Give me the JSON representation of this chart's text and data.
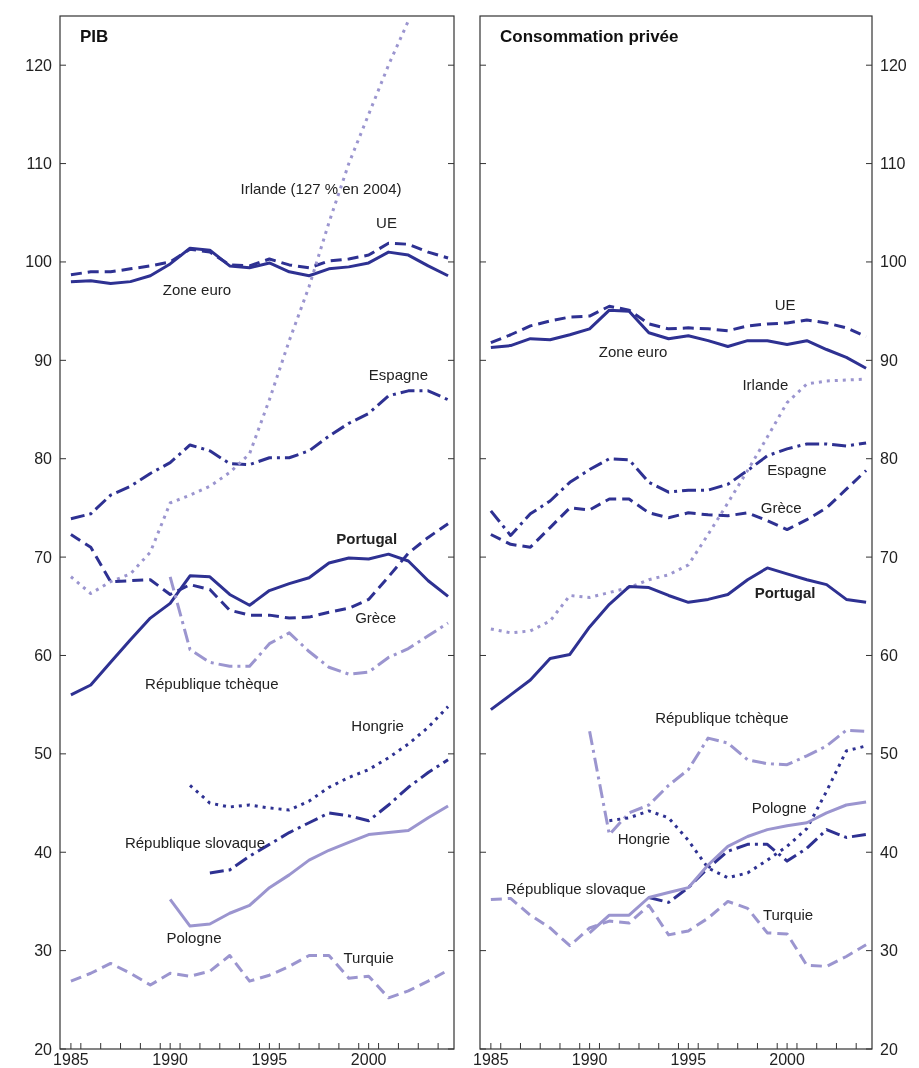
{
  "chart_data": [
    {
      "type": "line",
      "title": "PIB",
      "x": [
        1985,
        1986,
        1987,
        1988,
        1989,
        1990,
        1991,
        1992,
        1993,
        1994,
        1995,
        1996,
        1997,
        1998,
        1999,
        2000,
        2001,
        2002,
        2003,
        2004
      ],
      "xlim": [
        1984.45,
        2004.3
      ],
      "ylim": [
        20,
        125
      ],
      "xticks": [
        1985,
        {
          "value": 1985.5,
          "label": null
        },
        {
          "value": 1986.5,
          "label": null
        },
        {
          "value": 1987.5,
          "label": null
        },
        {
          "value": 1988.5,
          "label": null
        },
        {
          "value": 1989.5,
          "label": null
        },
        1990,
        {
          "value": 1990.5,
          "label": null
        },
        {
          "value": 1991.5,
          "label": null
        },
        {
          "value": 1992.5,
          "label": null
        },
        {
          "value": 1993.5,
          "label": null
        },
        {
          "value": 1994.5,
          "label": null
        },
        1995,
        {
          "value": 1995.5,
          "label": null
        },
        {
          "value": 1996.5,
          "label": null
        },
        {
          "value": 1997.5,
          "label": null
        },
        {
          "value": 1998.5,
          "label": null
        },
        {
          "value": 1999.5,
          "label": null
        },
        2000,
        {
          "value": 2000.5,
          "label": null
        },
        {
          "value": 2001.5,
          "label": null
        },
        {
          "value": 2002.5,
          "label": null
        },
        {
          "value": 2003.5,
          "label": null
        }
      ],
      "yticks": [
        20,
        30,
        40,
        50,
        60,
        70,
        80,
        90,
        100,
        110,
        120
      ],
      "series": [
        {
          "name": "Zone euro",
          "color": "#2e3192",
          "line_style": "solid",
          "values": [
            98,
            98.1,
            97.8,
            98,
            98.6,
            99.8,
            101.4,
            101.2,
            99.6,
            99.4,
            99.9,
            99,
            98.6,
            99.3,
            99.5,
            99.9,
            101,
            100.7,
            99.6,
            98.6
          ]
        },
        {
          "name": "UE",
          "color": "#2e3192",
          "line_style": "dashed",
          "values": [
            98.7,
            99,
            99,
            99.3,
            99.6,
            100,
            101.3,
            101,
            99.7,
            99.6,
            100.3,
            99.7,
            99.4,
            100.1,
            100.3,
            100.7,
            101.9,
            101.8,
            101,
            100.4
          ]
        },
        {
          "name": "Espagne",
          "color": "#2e3192",
          "line_style": "dashdot",
          "values": [
            73.9,
            74.4,
            76.3,
            77.2,
            78.5,
            79.6,
            81.4,
            80.8,
            79.5,
            79.4,
            80.1,
            80.1,
            80.8,
            82.3,
            83.6,
            84.6,
            86.4,
            86.9,
            86.9,
            86
          ]
        },
        {
          "name": "Irlande (127 % en 2004)",
          "color": "#9b95cf",
          "line_style": "dotted",
          "values": [
            68,
            66.3,
            67.5,
            68.3,
            70.5,
            75.5,
            76.3,
            77.2,
            78.6,
            80.5,
            86,
            92,
            97.5,
            104,
            110,
            115,
            120,
            124.5,
            null,
            null
          ]
        },
        {
          "name": "Portugal",
          "color": "#2e3192",
          "line_style": "solid",
          "values": [
            56,
            57,
            59.3,
            61.6,
            63.8,
            65.3,
            68.1,
            68,
            66.2,
            65.1,
            66.6,
            67.3,
            67.9,
            69.4,
            69.9,
            69.8,
            70.3,
            69.6,
            67.6,
            66
          ]
        },
        {
          "name": "Grèce",
          "color": "#2e3192",
          "line_style": "dashed",
          "values": [
            72.3,
            71,
            67.5,
            67.6,
            67.7,
            66.2,
            67.2,
            66.7,
            64.6,
            64.1,
            64.1,
            63.8,
            63.9,
            64.4,
            64.8,
            65.7,
            68,
            70.4,
            72,
            73.4
          ]
        },
        {
          "name": "République tchèque",
          "color": "#9b95cf",
          "line_style": "dashdot",
          "values": [
            null,
            null,
            null,
            null,
            null,
            68,
            60.6,
            59.3,
            58.9,
            58.9,
            61.2,
            62.3,
            60.4,
            58.8,
            58.1,
            58.3,
            59.8,
            60.7,
            62,
            63.3
          ]
        },
        {
          "name": "Hongrie",
          "color": "#2e3192",
          "line_style": "dotted",
          "values": [
            null,
            null,
            null,
            null,
            null,
            null,
            46.8,
            45,
            44.6,
            44.8,
            44.5,
            44.3,
            45.2,
            46.6,
            47.6,
            48.4,
            49.6,
            51,
            52.7,
            54.8
          ]
        },
        {
          "name": "République slovaque",
          "color": "#2e3192",
          "line_style": "dashdot",
          "values": [
            null,
            null,
            null,
            null,
            null,
            null,
            null,
            37.9,
            38.2,
            39.6,
            40.8,
            42,
            43,
            44,
            43.7,
            43.2,
            44.8,
            46.6,
            48.1,
            49.4
          ]
        },
        {
          "name": "Pologne",
          "color": "#9b95cf",
          "line_style": "solid",
          "values": [
            null,
            null,
            null,
            null,
            null,
            35.2,
            32.5,
            32.7,
            33.8,
            34.6,
            36.4,
            37.7,
            39.2,
            40.2,
            41,
            41.8,
            42,
            42.2,
            43.5,
            44.7
          ]
        },
        {
          "name": "Turquie",
          "color": "#9b95cf",
          "line_style": "dashed",
          "values": [
            26.9,
            27.7,
            28.7,
            27.7,
            26.5,
            27.7,
            27.4,
            27.9,
            29.5,
            26.9,
            27.5,
            28.4,
            29.5,
            29.5,
            27.2,
            27.4,
            25.2,
            25.9,
            26.9,
            28
          ]
        }
      ]
    },
    {
      "type": "line",
      "title": "Consommation privée",
      "x": [
        1985,
        1986,
        1987,
        1988,
        1989,
        1990,
        1991,
        1992,
        1993,
        1994,
        1995,
        1996,
        1997,
        1998,
        1999,
        2000,
        2001,
        2002,
        2003,
        2004
      ],
      "xlim": [
        1984.45,
        2004.3
      ],
      "ylim": [
        20,
        125
      ],
      "xticks": [
        1985,
        {
          "value": 1985.5,
          "label": null
        },
        {
          "value": 1986.5,
          "label": null
        },
        {
          "value": 1987.5,
          "label": null
        },
        {
          "value": 1988.5,
          "label": null
        },
        {
          "value": 1989.5,
          "label": null
        },
        1990,
        {
          "value": 1990.5,
          "label": null
        },
        {
          "value": 1991.5,
          "label": null
        },
        {
          "value": 1992.5,
          "label": null
        },
        {
          "value": 1993.5,
          "label": null
        },
        {
          "value": 1994.5,
          "label": null
        },
        1995,
        {
          "value": 1995.5,
          "label": null
        },
        {
          "value": 1996.5,
          "label": null
        },
        {
          "value": 1997.5,
          "label": null
        },
        {
          "value": 1998.5,
          "label": null
        },
        {
          "value": 1999.5,
          "label": null
        },
        2000,
        {
          "value": 2000.5,
          "label": null
        },
        {
          "value": 2001.5,
          "label": null
        },
        {
          "value": 2002.5,
          "label": null
        },
        {
          "value": 2003.5,
          "label": null
        }
      ],
      "yticks": [
        20,
        30,
        40,
        50,
        60,
        70,
        80,
        90,
        100,
        110,
        120
      ],
      "series": [
        {
          "name": "Zone euro",
          "color": "#2e3192",
          "line_style": "solid",
          "values": [
            91.3,
            91.5,
            92.2,
            92.1,
            92.6,
            93.2,
            95.1,
            95,
            92.8,
            92.2,
            92.5,
            92,
            91.4,
            92,
            92,
            91.6,
            92,
            91.1,
            90.3,
            89.2
          ]
        },
        {
          "name": "UE",
          "color": "#2e3192",
          "line_style": "dashed",
          "values": [
            91.8,
            92.6,
            93.5,
            94,
            94.4,
            94.5,
            95.5,
            95.1,
            93.7,
            93.2,
            93.3,
            93.2,
            93,
            93.5,
            93.7,
            93.8,
            94.1,
            93.8,
            93.3,
            92.4
          ]
        },
        {
          "name": "Espagne",
          "color": "#2e3192",
          "line_style": "dashdot",
          "values": [
            74.7,
            72.2,
            74.4,
            75.7,
            77.6,
            78.9,
            80,
            79.9,
            77.6,
            76.6,
            76.8,
            76.8,
            77.4,
            78.8,
            80.3,
            81,
            81.5,
            81.5,
            81.3,
            81.6
          ]
        },
        {
          "name": "Irlande",
          "color": "#9b95cf",
          "line_style": "dotted",
          "values": [
            62.7,
            62.3,
            62.5,
            63.5,
            66.1,
            65.9,
            66.4,
            66.9,
            67.7,
            68.2,
            69.2,
            72.3,
            75.5,
            78.8,
            82.2,
            85.7,
            87.6,
            87.9,
            88,
            88.1
          ]
        },
        {
          "name": "Portugal",
          "color": "#2e3192",
          "line_style": "solid",
          "values": [
            54.5,
            56,
            57.5,
            59.7,
            60.1,
            62.9,
            65.2,
            67,
            66.9,
            66.1,
            65.4,
            65.7,
            66.2,
            67.7,
            68.9,
            68.3,
            67.7,
            67.2,
            65.7,
            65.4
          ]
        },
        {
          "name": "Grèce",
          "color": "#2e3192",
          "line_style": "dashed",
          "values": [
            72.3,
            71.3,
            71,
            73,
            75,
            74.8,
            75.9,
            75.9,
            74.5,
            74,
            74.5,
            74.3,
            74.2,
            74.5,
            73.7,
            72.8,
            73.8,
            75,
            76.9,
            78.8
          ]
        },
        {
          "name": "République tchèque",
          "color": "#9b95cf",
          "line_style": "dashdot",
          "values": [
            null,
            null,
            null,
            null,
            null,
            52.3,
            41.8,
            44,
            44.8,
            46.8,
            48.4,
            51.6,
            51.1,
            49.4,
            49,
            48.9,
            49.8,
            50.8,
            52.4,
            52.3
          ]
        },
        {
          "name": "Hongrie",
          "color": "#2e3192",
          "line_style": "dotted",
          "values": [
            null,
            null,
            null,
            null,
            null,
            null,
            43.2,
            43.5,
            44.2,
            43.5,
            41.2,
            38.4,
            37.4,
            37.9,
            39.2,
            40.6,
            42.4,
            46.2,
            50.3,
            50.8
          ]
        },
        {
          "name": "République slovaque",
          "color": "#2e3192",
          "line_style": "dashdot",
          "values": [
            null,
            null,
            null,
            null,
            null,
            null,
            null,
            null,
            35.4,
            34.9,
            36.4,
            38.4,
            40.1,
            40.8,
            40.8,
            39.1,
            40.4,
            42.3,
            41.5,
            41.8
          ]
        },
        {
          "name": "Pologne",
          "color": "#9b95cf",
          "line_style": "solid",
          "values": [
            null,
            null,
            null,
            null,
            null,
            31.8,
            33.6,
            33.6,
            35.4,
            35.9,
            36.4,
            38.7,
            40.6,
            41.6,
            42.3,
            42.7,
            43,
            44,
            44.8,
            45.1
          ]
        },
        {
          "name": "Turquie",
          "color": "#9b95cf",
          "line_style": "dashed",
          "values": [
            35.2,
            35.3,
            33.6,
            32.3,
            30.5,
            32.3,
            33,
            32.8,
            34.6,
            31.6,
            32,
            33.3,
            35,
            34.3,
            31.8,
            31.7,
            28.5,
            28.4,
            29.4,
            30.6
          ]
        }
      ]
    }
  ]
}
